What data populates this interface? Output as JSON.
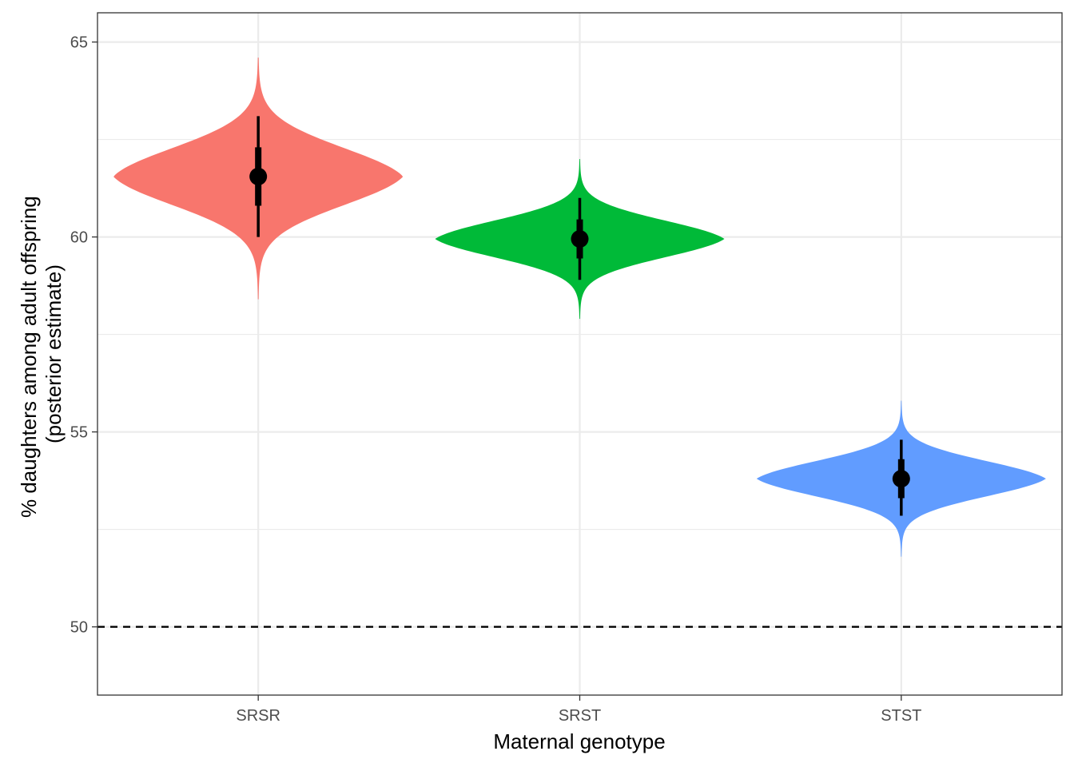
{
  "chart_data": {
    "type": "violin",
    "xlabel": "Maternal genotype",
    "ylabel_lines": [
      "% daughters among adult offspring",
      "(posterior estimate)"
    ],
    "ylim": [
      48.25,
      65.75
    ],
    "yticks": [
      50,
      55,
      60,
      65
    ],
    "grid": true,
    "reference_line": {
      "y": 50,
      "style": "dashed",
      "color": "#000000"
    },
    "categories": [
      "SRSR",
      "SRST",
      "STST"
    ],
    "series": [
      {
        "category": "SRSR",
        "color": "#F8766D",
        "median": 61.55,
        "interval_inner": [
          60.8,
          62.3
        ],
        "interval_outer": [
          60.0,
          63.1
        ],
        "range": [
          58.4,
          64.6
        ],
        "sd": 0.78
      },
      {
        "category": "SRST",
        "color": "#00BA38",
        "median": 59.95,
        "interval_inner": [
          59.45,
          60.45
        ],
        "interval_outer": [
          58.9,
          61.0
        ],
        "range": [
          57.9,
          62.0
        ],
        "sd": 0.5
      },
      {
        "category": "STST",
        "color": "#619CFF",
        "median": 53.8,
        "interval_inner": [
          53.3,
          54.3
        ],
        "interval_outer": [
          52.85,
          54.8
        ],
        "range": [
          51.8,
          55.8
        ],
        "sd": 0.48
      }
    ]
  }
}
